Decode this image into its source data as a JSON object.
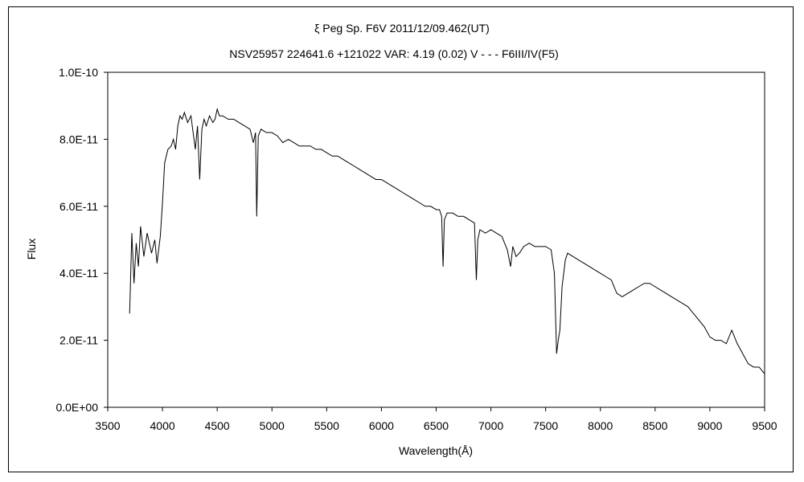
{
  "chart_data": {
    "type": "line",
    "title": "ξ  Peg    Sp. F6V    2011/12/09.462(UT)",
    "subtitle": "NSV25957 224641.6 +121022 VAR: 4.19 (0.02) V - - - F6III/IV(F5)",
    "xlabel": "Wavelength(Å)",
    "ylabel": "Flux",
    "xlim": [
      3500,
      9500
    ],
    "ylim": [
      0,
      1e-10
    ],
    "x_ticks": [
      3500,
      4000,
      4500,
      5000,
      5500,
      6000,
      6500,
      7000,
      7500,
      8000,
      8500,
      9000,
      9500
    ],
    "x_tick_labels": [
      "3500",
      "4000",
      "4500",
      "5000",
      "5500",
      "6000",
      "6500",
      "7000",
      "7500",
      "8000",
      "8500",
      "9000",
      "9500"
    ],
    "y_ticks": [
      0,
      2e-11,
      4e-11,
      6e-11,
      8e-11,
      1e-10
    ],
    "y_tick_labels": [
      "0.0E+00",
      "2.0E-11",
      "4.0E-11",
      "6.0E-11",
      "8.0E-11",
      "1.0E-10"
    ],
    "grid": false,
    "legend": "none",
    "line_color": "#000000",
    "series": [
      {
        "x": [
          3700,
          3720,
          3740,
          3760,
          3780,
          3800,
          3830,
          3860,
          3900,
          3930,
          3950,
          3980,
          4000,
          4020,
          4050,
          4080,
          4100,
          4120,
          4140,
          4160,
          4180,
          4200,
          4230,
          4260,
          4280,
          4300,
          4320,
          4340,
          4360,
          4380,
          4400,
          4430,
          4460,
          4480,
          4500,
          4520,
          4550,
          4600,
          4650,
          4700,
          4750,
          4800,
          4830,
          4850,
          4861,
          4875,
          4900,
          4950,
          5000,
          5050,
          5100,
          5150,
          5200,
          5250,
          5300,
          5350,
          5400,
          5450,
          5500,
          5550,
          5600,
          5650,
          5700,
          5750,
          5800,
          5850,
          5900,
          5950,
          6000,
          6050,
          6100,
          6150,
          6200,
          6250,
          6300,
          6350,
          6400,
          6450,
          6500,
          6530,
          6550,
          6563,
          6575,
          6600,
          6650,
          6700,
          6750,
          6800,
          6850,
          6867,
          6880,
          6900,
          6950,
          7000,
          7050,
          7100,
          7150,
          7180,
          7200,
          7230,
          7260,
          7300,
          7350,
          7400,
          7450,
          7500,
          7550,
          7580,
          7600,
          7615,
          7630,
          7650,
          7680,
          7700,
          7750,
          7800,
          7850,
          7900,
          7950,
          8000,
          8050,
          8100,
          8150,
          8200,
          8250,
          8300,
          8350,
          8400,
          8450,
          8500,
          8550,
          8600,
          8650,
          8700,
          8750,
          8800,
          8850,
          8900,
          8950,
          9000,
          9050,
          9100,
          9150,
          9200,
          9250,
          9300,
          9350,
          9400,
          9450,
          9500
        ],
        "y": [
          2.8e-11,
          5.2e-11,
          3.7e-11,
          4.9e-11,
          4.2e-11,
          5.4e-11,
          4.5e-11,
          5.2e-11,
          4.6e-11,
          5e-11,
          4.3e-11,
          5.1e-11,
          6.1e-11,
          7.3e-11,
          7.7e-11,
          7.8e-11,
          8e-11,
          7.7e-11,
          8.4e-11,
          8.7e-11,
          8.6e-11,
          8.8e-11,
          8.5e-11,
          8.7e-11,
          8.2e-11,
          7.7e-11,
          8.4e-11,
          6.8e-11,
          8.3e-11,
          8.6e-11,
          8.4e-11,
          8.7e-11,
          8.5e-11,
          8.6e-11,
          8.9e-11,
          8.7e-11,
          8.7e-11,
          8.6e-11,
          8.6e-11,
          8.5e-11,
          8.4e-11,
          8.3e-11,
          7.9e-11,
          8.2e-11,
          5.7e-11,
          8.1e-11,
          8.3e-11,
          8.2e-11,
          8.2e-11,
          8.1e-11,
          7.9e-11,
          8e-11,
          7.9e-11,
          7.8e-11,
          7.8e-11,
          7.8e-11,
          7.7e-11,
          7.7e-11,
          7.6e-11,
          7.5e-11,
          7.5e-11,
          7.4e-11,
          7.3e-11,
          7.2e-11,
          7.1e-11,
          7e-11,
          6.9e-11,
          6.8e-11,
          6.8e-11,
          6.7e-11,
          6.6e-11,
          6.5e-11,
          6.4e-11,
          6.3e-11,
          6.2e-11,
          6.1e-11,
          6e-11,
          6e-11,
          5.9e-11,
          5.9e-11,
          5.7e-11,
          4.2e-11,
          5.6e-11,
          5.8e-11,
          5.8e-11,
          5.7e-11,
          5.7e-11,
          5.6e-11,
          5.5e-11,
          3.8e-11,
          5e-11,
          5.3e-11,
          5.2e-11,
          5.3e-11,
          5.2e-11,
          5.1e-11,
          4.7e-11,
          4.2e-11,
          4.8e-11,
          4.5e-11,
          4.6e-11,
          4.8e-11,
          4.9e-11,
          4.8e-11,
          4.8e-11,
          4.8e-11,
          4.7e-11,
          4e-11,
          1.6e-11,
          2e-11,
          2.3e-11,
          3.6e-11,
          4.4e-11,
          4.6e-11,
          4.5e-11,
          4.4e-11,
          4.3e-11,
          4.2e-11,
          4.1e-11,
          4e-11,
          3.9e-11,
          3.8e-11,
          3.4e-11,
          3.3e-11,
          3.4e-11,
          3.5e-11,
          3.6e-11,
          3.7e-11,
          3.7e-11,
          3.6e-11,
          3.5e-11,
          3.4e-11,
          3.3e-11,
          3.2e-11,
          3.1e-11,
          3e-11,
          2.8e-11,
          2.6e-11,
          2.4e-11,
          2.1e-11,
          2e-11,
          2e-11,
          1.9e-11,
          2.3e-11,
          1.9e-11,
          1.6e-11,
          1.3e-11,
          1.2e-11,
          1.2e-11,
          1e-11
        ]
      }
    ]
  }
}
